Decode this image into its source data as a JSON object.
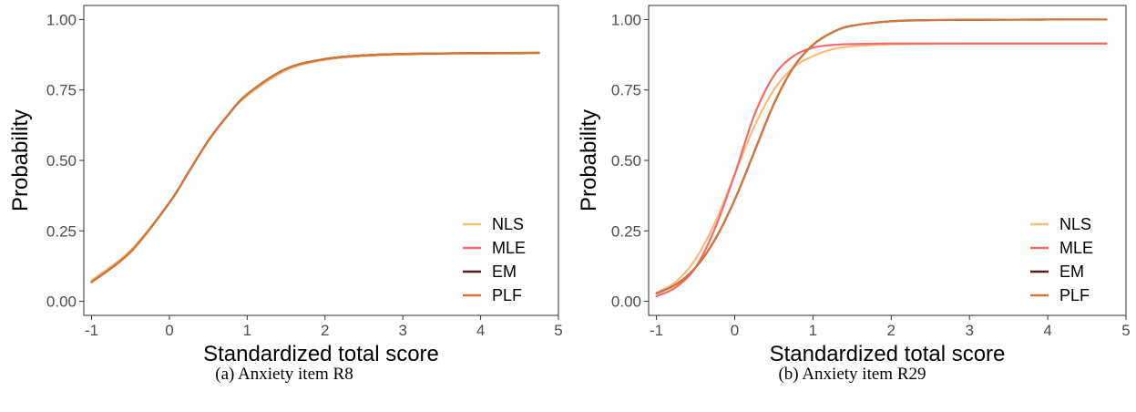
{
  "chart_data": [
    {
      "type": "line",
      "caption": "(a) Anxiety item R8",
      "xlabel": "Standardized total score",
      "ylabel": "Probability",
      "xlim": [
        -1.1,
        5.0
      ],
      "ylim": [
        -0.05,
        1.05
      ],
      "xticks": [
        -1,
        0,
        1,
        2,
        3,
        4,
        5
      ],
      "xtick_labels": [
        "-1",
        "0",
        "1",
        "2",
        "3",
        "4",
        "5"
      ],
      "yticks": [
        0,
        0.25,
        0.5,
        0.75,
        1.0
      ],
      "ytick_labels": [
        "0.00",
        "0.25",
        "0.50",
        "0.75",
        "1.00"
      ],
      "grid": false,
      "legend_position": "bottom-right",
      "x": [
        -1.0,
        -0.5,
        0.0,
        0.25,
        0.5,
        0.75,
        1.0,
        1.5,
        2.0,
        2.5,
        3.0,
        3.5,
        4.0,
        4.75
      ],
      "series": [
        {
          "name": "NLS",
          "color": "#f2be7c",
          "values": [
            0.075,
            0.18,
            0.35,
            0.46,
            0.57,
            0.66,
            0.73,
            0.82,
            0.857,
            0.87,
            0.876,
            0.878,
            0.879,
            0.88
          ]
        },
        {
          "name": "MLE",
          "color": "#f46a6a",
          "values": [
            0.068,
            0.175,
            0.35,
            0.46,
            0.57,
            0.66,
            0.735,
            0.825,
            0.86,
            0.873,
            0.878,
            0.88,
            0.881,
            0.882
          ]
        },
        {
          "name": "EM",
          "color": "#5a1e1e",
          "values": [
            0.068,
            0.175,
            0.35,
            0.46,
            0.57,
            0.66,
            0.735,
            0.825,
            0.86,
            0.873,
            0.878,
            0.88,
            0.881,
            0.882
          ]
        },
        {
          "name": "PLF",
          "color": "#d2773a",
          "values": [
            0.068,
            0.175,
            0.35,
            0.46,
            0.57,
            0.66,
            0.735,
            0.825,
            0.86,
            0.873,
            0.878,
            0.88,
            0.881,
            0.882
          ]
        }
      ]
    },
    {
      "type": "line",
      "caption": "(b) Anxiety item R29",
      "xlabel": "Standardized total score",
      "ylabel": "Probability",
      "xlim": [
        -1.1,
        5.0
      ],
      "ylim": [
        -0.05,
        1.05
      ],
      "xticks": [
        -1,
        0,
        1,
        2,
        3,
        4,
        5
      ],
      "xtick_labels": [
        "-1",
        "0",
        "1",
        "2",
        "3",
        "4",
        "5"
      ],
      "yticks": [
        0,
        0.25,
        0.5,
        0.75,
        1.0
      ],
      "ytick_labels": [
        "0.00",
        "0.25",
        "0.50",
        "0.75",
        "1.00"
      ],
      "grid": false,
      "legend_position": "bottom-right",
      "x": [
        -1.0,
        -0.75,
        -0.5,
        -0.25,
        0.0,
        0.25,
        0.5,
        0.75,
        1.0,
        1.25,
        1.5,
        2.0,
        2.5,
        3.0,
        4.0,
        4.75
      ],
      "series": [
        {
          "name": "NLS",
          "color": "#f2be7c",
          "values": [
            0.03,
            0.07,
            0.15,
            0.28,
            0.45,
            0.62,
            0.75,
            0.83,
            0.87,
            0.895,
            0.905,
            0.912,
            0.914,
            0.915,
            0.915,
            0.915
          ]
        },
        {
          "name": "MLE",
          "color": "#f46a6a",
          "values": [
            0.018,
            0.05,
            0.12,
            0.26,
            0.45,
            0.66,
            0.8,
            0.87,
            0.9,
            0.91,
            0.913,
            0.915,
            0.915,
            0.915,
            0.915,
            0.915
          ]
        },
        {
          "name": "EM",
          "color": "#5a1e1e",
          "values": [
            0.028,
            0.06,
            0.12,
            0.22,
            0.36,
            0.53,
            0.7,
            0.83,
            0.91,
            0.955,
            0.978,
            0.994,
            0.998,
            0.999,
            1.0,
            1.0
          ]
        },
        {
          "name": "PLF",
          "color": "#d2773a",
          "values": [
            0.028,
            0.06,
            0.12,
            0.22,
            0.36,
            0.53,
            0.7,
            0.83,
            0.91,
            0.955,
            0.978,
            0.994,
            0.998,
            0.999,
            1.0,
            1.0
          ]
        }
      ]
    }
  ]
}
